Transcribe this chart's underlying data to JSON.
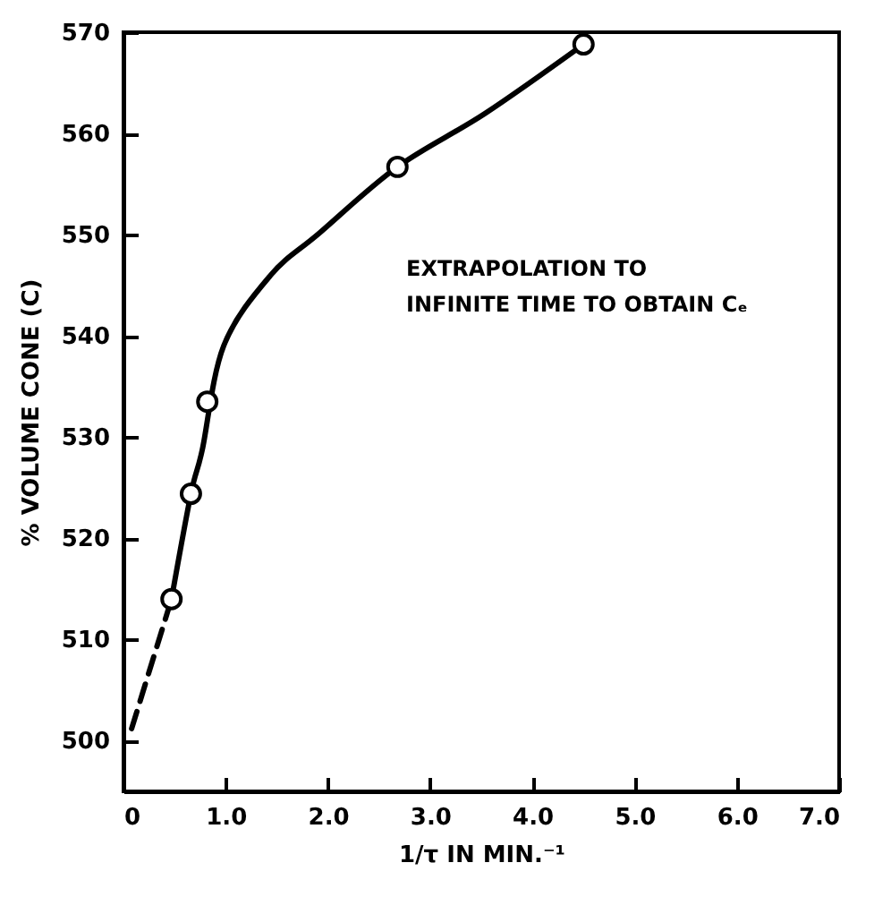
{
  "chart_data": {
    "type": "scatter",
    "xlabel": "1/τ IN MIN.⁻¹",
    "ylabel": "% VOLUME CONE (C)",
    "annotations": [
      "EXTRAPOLATION TO\nINFINITE TIME TO OBTAIN Cₑ"
    ],
    "xlim": [
      0,
      7
    ],
    "ylim": [
      495,
      570
    ],
    "xticks": [
      0,
      {
        "value": 1,
        "label": "1.0"
      },
      {
        "value": 2,
        "label": "2.0"
      },
      {
        "value": 3,
        "label": "3.0"
      },
      {
        "value": 4,
        "label": "4.0"
      },
      {
        "value": 5,
        "label": "5.0"
      },
      {
        "value": 6,
        "label": "6.0"
      },
      {
        "value": 7,
        "label": "7.0"
      }
    ],
    "yticks": [
      500,
      510,
      520,
      530,
      540,
      550,
      560,
      570
    ],
    "grid": false,
    "series": [
      {
        "type": "line",
        "color": "#000000",
        "marker": "none",
        "line_style": "solid",
        "x": [
          0.47,
          0.66,
          0.77,
          0.98,
          1.44,
          1.91,
          2.68,
          3.54,
          4.5
        ],
        "values": [
          514,
          524.4,
          528.7,
          539,
          546,
          550.1,
          556.7,
          562,
          568.8
        ]
      },
      {
        "type": "line",
        "color": "#000000",
        "marker": "none",
        "line_style": "dashed",
        "x": [
          0.08,
          0.47
        ],
        "values": [
          501.2,
          514
        ]
      },
      {
        "color": "#000000",
        "marker": "circle",
        "x": [
          0.47,
          0.66,
          0.82,
          2.68,
          4.5
        ],
        "values": [
          514,
          524.4,
          533.5,
          556.7,
          568.8
        ]
      }
    ]
  }
}
